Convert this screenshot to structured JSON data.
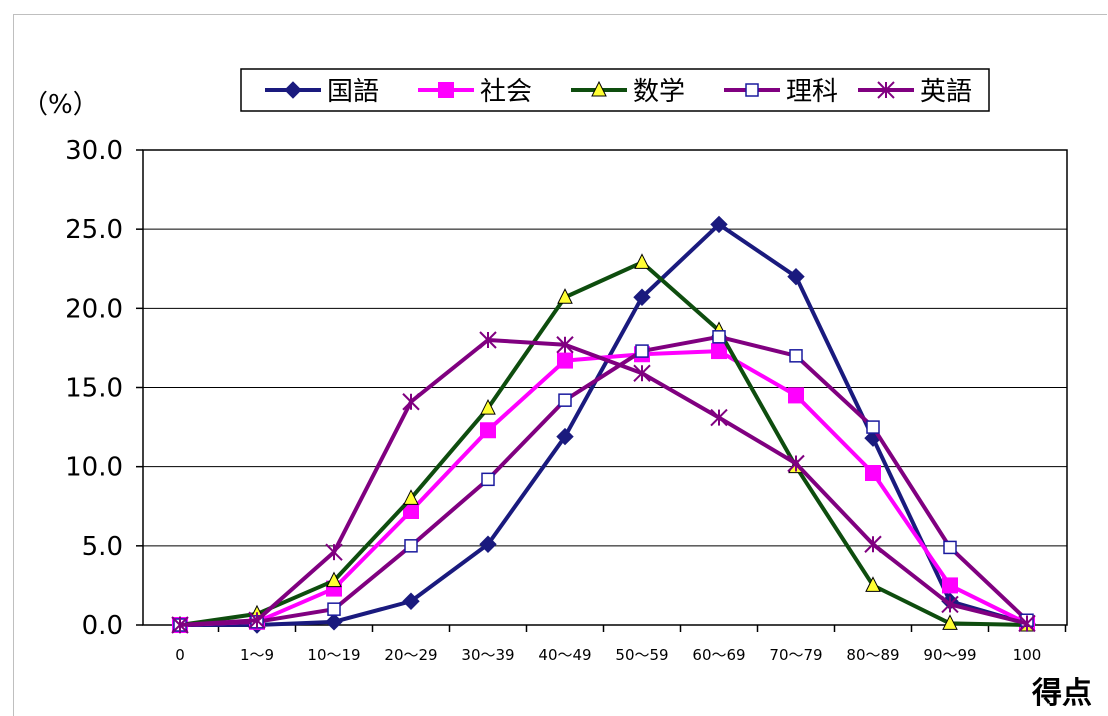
{
  "chart_data": {
    "type": "line",
    "title": "",
    "ylabel": "（%）",
    "xlabel": "得点",
    "ylim": [
      0,
      30
    ],
    "yticks": [
      "0.0",
      "5.0",
      "10.0",
      "15.0",
      "20.0",
      "25.0",
      "30.0"
    ],
    "categories": [
      "0",
      "1～9",
      "10～19",
      "20～29",
      "30～39",
      "40～49",
      "50～59",
      "60～69",
      "70～79",
      "80～89",
      "90～99",
      "100"
    ],
    "legend_position": "top",
    "grid": "horizontal",
    "series": [
      {
        "name": "国語",
        "color": "#1a1a7e",
        "marker": "diamond",
        "values": [
          0.0,
          0.0,
          0.2,
          1.5,
          5.1,
          11.9,
          20.7,
          25.3,
          22.0,
          11.8,
          1.5,
          0.1
        ]
      },
      {
        "name": "社会",
        "color": "#ff00ff",
        "marker": "square",
        "values": [
          0.0,
          0.2,
          2.3,
          7.2,
          12.3,
          16.7,
          17.1,
          17.3,
          14.5,
          9.6,
          2.5,
          0.1
        ]
      },
      {
        "name": "数学",
        "color": "#0e4d0e",
        "marker": "triangle",
        "values": [
          0.0,
          0.7,
          2.8,
          8.0,
          13.7,
          20.7,
          22.9,
          18.6,
          10.0,
          2.5,
          0.1,
          0.0
        ]
      },
      {
        "name": "理科",
        "color": "#800080",
        "marker": "open-square",
        "values": [
          0.0,
          0.2,
          1.0,
          5.0,
          9.2,
          14.2,
          17.3,
          18.2,
          17.0,
          12.5,
          4.9,
          0.3
        ]
      },
      {
        "name": "英語",
        "color": "#800080",
        "marker": "asterisk",
        "values": [
          0.0,
          0.3,
          4.6,
          14.1,
          18.0,
          17.7,
          15.9,
          13.1,
          10.2,
          5.1,
          1.3,
          0.1
        ]
      }
    ]
  }
}
